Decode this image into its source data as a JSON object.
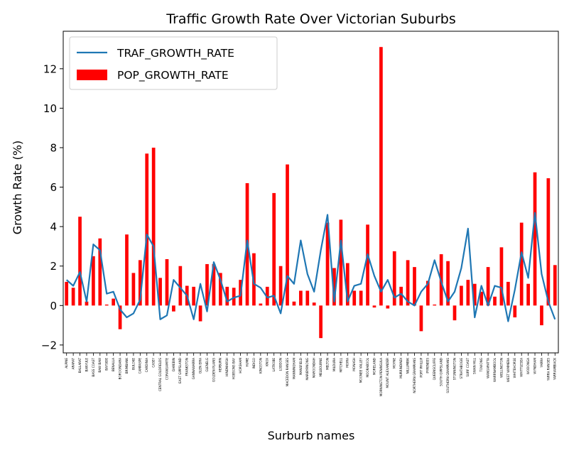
{
  "chart_data": {
    "type": "bar",
    "title": "Traffic Growth Rate Over Victorian Suburbs",
    "xlabel": "Surburb names",
    "ylabel": "Growth Rate (%)",
    "ylim": [
      -2.4,
      13.9
    ],
    "yticks": [
      -2,
      0,
      2,
      4,
      6,
      8,
      10,
      12
    ],
    "legend_position": "top-left",
    "grid": false,
    "categories": [
      "ALPINE",
      "ARARAT",
      "BALLARAT",
      "BANYULE",
      "BASS COAST",
      "BAW BAW",
      "BAYSIDE",
      "BENALLA",
      "BOROONDARA",
      "BRIMBANK",
      "BULOKE",
      "CAMPASPE",
      "CARDINIA",
      "CASEY",
      "CENTRAL GOLDFIELDS",
      "CORANGAMITE",
      "DAREBIN",
      "EAST GIPPSLAND",
      "FRANKSTON",
      "GANNAWARRA",
      "GLEN EIRA",
      "GLENELG",
      "GOLDEN PLAINS",
      "HEPBURN",
      "HINDMARSH",
      "HOBSONS BAY",
      "HORSHAM",
      "HUME",
      "INDIGO",
      "KINGSTON",
      "KNOX",
      "LATROBE",
      "LODDON",
      "MACEDON RANGES",
      "MANNINGHAM",
      "MANSFIELD",
      "MARIBYRNONG",
      "MAROONDAH",
      "MELBOURNE",
      "MELTON",
      "MILDURA",
      "MITCHELL",
      "MOIRA",
      "MONASH",
      "MOONEE VALLEY",
      "MOORABOOL",
      "MORELAND",
      "MORNINGTON PENINSULA",
      "MOUNT ALEXANDER",
      "MOYNE",
      "MURRINDINDI",
      "NILLUMBIK",
      "NORTHERN GRAMPIANS",
      "PORT PHILLIP",
      "PYRENEES",
      "QUEENSCLIFFE",
      "SOUTH GIPPSLAND",
      "SOUTHERN GRAMPIANS",
      "STONNINGTON",
      "STRATHBOGIE",
      "SURF COAST",
      "SWAN HILL",
      "TOWONG",
      "WANGARATTA",
      "WARRNAMBOOL",
      "WELLINGTON",
      "WEST WIMMERA",
      "WHITEHORSE",
      "WHITTLESEA",
      "WODONGA",
      "WYNDHAM",
      "YARRA",
      "YARRA RANGES",
      "YARRIAMBIACK"
    ],
    "series": [
      {
        "name": "POP_GROWTH_RATE",
        "kind": "bar",
        "color": "#ff0000",
        "values": [
          1.2,
          0.9,
          4.5,
          0.2,
          2.5,
          3.4,
          0.05,
          0.35,
          -1.2,
          3.6,
          1.65,
          2.3,
          7.7,
          8.0,
          1.4,
          2.35,
          -0.3,
          2.0,
          1.0,
          0.95,
          -0.8,
          2.1,
          2.1,
          1.65,
          0.95,
          0.9,
          1.3,
          6.2,
          2.65,
          0.1,
          0.95,
          5.7,
          2.0,
          7.15,
          0.2,
          0.75,
          0.75,
          0.15,
          -1.65,
          4.2,
          1.9,
          4.35,
          2.15,
          0.75,
          0.75,
          4.1,
          -0.1,
          13.1,
          -0.15,
          2.75,
          0.95,
          2.3,
          1.95,
          -1.3,
          1.25,
          0.05,
          2.6,
          2.25,
          -0.75,
          1.0,
          1.3,
          1.1,
          0.7,
          1.95,
          0.45,
          2.95,
          1.2,
          -0.6,
          4.2,
          1.1,
          6.75,
          -1.0,
          6.45,
          2.05
        ]
      },
      {
        "name": "TRAF_GROWTH_RATE",
        "kind": "line",
        "color": "#1f77b4",
        "values": [
          1.3,
          1.0,
          1.7,
          0.2,
          3.1,
          2.8,
          0.6,
          0.7,
          -0.2,
          -0.6,
          -0.4,
          0.3,
          3.6,
          3.0,
          -0.7,
          -0.5,
          1.3,
          0.9,
          0.5,
          -0.7,
          1.1,
          -0.3,
          2.2,
          1.3,
          0.2,
          0.4,
          0.5,
          3.3,
          1.1,
          0.9,
          0.4,
          0.5,
          -0.4,
          1.5,
          1.1,
          3.3,
          1.6,
          0.7,
          2.8,
          4.6,
          0.2,
          3.3,
          0.2,
          1.0,
          1.1,
          2.6,
          1.5,
          0.7,
          1.3,
          0.4,
          0.6,
          0.2,
          0.0,
          0.7,
          1.1,
          2.3,
          1.2,
          0.2,
          0.7,
          1.9,
          3.9,
          -0.6,
          1.0,
          0.0,
          1.0,
          0.9,
          -0.8,
          0.8,
          2.7,
          1.4,
          4.7,
          1.6,
          0.2,
          -0.7
        ]
      }
    ]
  }
}
